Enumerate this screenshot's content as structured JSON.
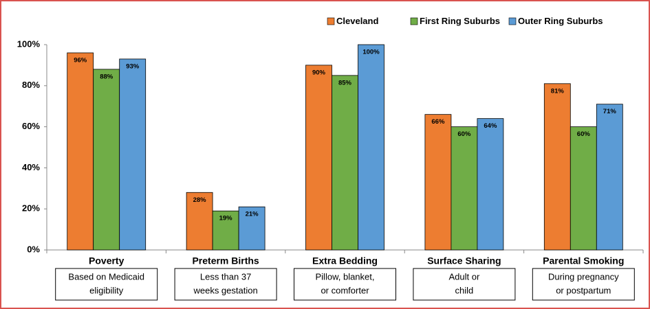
{
  "chart_data": {
    "type": "bar",
    "categories": [
      "Poverty",
      "Preterm Births",
      "Extra Bedding",
      "Surface Sharing",
      "Parental Smoking"
    ],
    "subtitles": [
      [
        "Based on Medicaid",
        "eligibility"
      ],
      [
        "Less than 37",
        "weeks gestation"
      ],
      [
        "Pillow, blanket,",
        "or comforter"
      ],
      [
        "Adult or",
        "child"
      ],
      [
        "During pregnancy",
        "or postpartum"
      ]
    ],
    "series": [
      {
        "name": "Cleveland",
        "color": "#ed7d31",
        "values": [
          96,
          28,
          90,
          66,
          81
        ],
        "value_labels": [
          "96%",
          "28%",
          "90%",
          "66%",
          "81%"
        ]
      },
      {
        "name": "First Ring Suburbs",
        "color": "#70ad47",
        "values": [
          88,
          19,
          85,
          60,
          60
        ],
        "value_labels": [
          "88%",
          "19%",
          "85%",
          "60%",
          "60%"
        ]
      },
      {
        "name": "Outer Ring Suburbs",
        "color": "#5b9bd5",
        "values": [
          93,
          21,
          100,
          64,
          71
        ],
        "value_labels": [
          "93%",
          "21%",
          "100%",
          "64%",
          "71%"
        ]
      }
    ],
    "ylim": [
      0,
      100
    ],
    "yticks": [
      {
        "value": 0,
        "label": "0%"
      },
      {
        "value": 20,
        "label": "20%"
      },
      {
        "value": 40,
        "label": "40%"
      },
      {
        "value": 60,
        "label": "60%"
      },
      {
        "value": 80,
        "label": "80%"
      },
      {
        "value": 100,
        "label": "100%"
      }
    ],
    "legend": "top-right",
    "grid": false
  }
}
